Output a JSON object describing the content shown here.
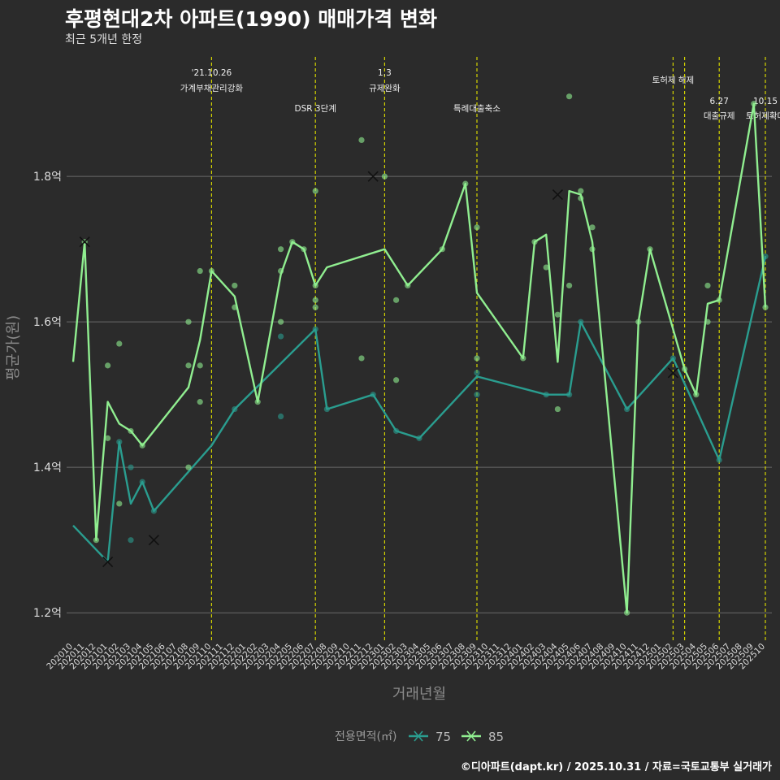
{
  "title": "후평현대2차 아파트(1990) 매매가격 변화",
  "subtitle": "최근 5개년 한정",
  "caption": "©디아파트(dapt.kr) / 2025.10.31 / 자료=국토교통부 실거래가",
  "colors": {
    "background": "#2b2b2b",
    "grid": "#6a6a6a",
    "event": "#d4d400",
    "s75": "#2a9d8f",
    "s85": "#90ee90",
    "text": "#dddddd"
  },
  "chart_data": {
    "type": "line",
    "xlabel": "거래년월",
    "ylabel": "평균가(원)",
    "ylim": [
      1.16,
      1.97
    ],
    "yticks": [
      {
        "v": 1.2,
        "label": "1.2억"
      },
      {
        "v": 1.4,
        "label": "1.4억"
      },
      {
        "v": 1.6,
        "label": "1.6억"
      },
      {
        "v": 1.8,
        "label": "1.8억"
      }
    ],
    "categories": [
      "202010",
      "202011",
      "202012",
      "202101",
      "202102",
      "202103",
      "202104",
      "202105",
      "202106",
      "202107",
      "202108",
      "202109",
      "202110",
      "202111",
      "202112",
      "202201",
      "202202",
      "202203",
      "202204",
      "202205",
      "202206",
      "202207",
      "202208",
      "202209",
      "202210",
      "202211",
      "202212",
      "202301",
      "202302",
      "202303",
      "202304",
      "202305",
      "202306",
      "202307",
      "202308",
      "202309",
      "202310",
      "202311",
      "202312",
      "202401",
      "202402",
      "202403",
      "202404",
      "202405",
      "202406",
      "202407",
      "202408",
      "202409",
      "202410",
      "202411",
      "202412",
      "202501",
      "202502",
      "202503",
      "202504",
      "202505",
      "202506",
      "202507",
      "202508",
      "202509",
      "202510"
    ],
    "legend": {
      "title": "전용면적(㎡)",
      "items": [
        "75",
        "85"
      ]
    },
    "series": [
      {
        "name": "75",
        "color": "#2a9d8f",
        "line": [
          [
            0,
            1.32
          ],
          [
            3,
            1.27
          ],
          [
            4,
            1.435
          ],
          [
            5,
            1.35
          ],
          [
            6,
            1.38
          ],
          [
            7,
            1.34
          ],
          [
            12,
            1.43
          ],
          [
            14,
            1.48
          ],
          [
            21,
            1.59
          ],
          [
            22,
            1.48
          ],
          [
            26,
            1.5
          ],
          [
            28,
            1.45
          ],
          [
            30,
            1.44
          ],
          [
            35,
            1.525
          ],
          [
            41,
            1.5
          ],
          [
            43,
            1.5
          ],
          [
            44,
            1.6
          ],
          [
            48,
            1.48
          ],
          [
            52,
            1.55
          ],
          [
            56,
            1.41
          ],
          [
            60,
            1.69
          ]
        ],
        "points": [
          [
            4,
            1.435
          ],
          [
            5,
            1.4
          ],
          [
            5,
            1.3
          ],
          [
            6,
            1.38
          ],
          [
            7,
            1.34
          ],
          [
            14,
            1.48
          ],
          [
            18,
            1.58
          ],
          [
            18,
            1.47
          ],
          [
            21,
            1.59
          ],
          [
            22,
            1.48
          ],
          [
            26,
            1.5
          ],
          [
            28,
            1.45
          ],
          [
            30,
            1.44
          ],
          [
            35,
            1.5
          ],
          [
            35,
            1.53
          ],
          [
            41,
            1.5
          ],
          [
            43,
            1.5
          ],
          [
            44,
            1.6
          ],
          [
            48,
            1.48
          ],
          [
            52,
            1.55
          ],
          [
            56,
            1.41
          ],
          [
            60,
            1.69
          ]
        ],
        "crosses": [
          [
            3,
            1.27
          ],
          [
            7,
            1.3
          ],
          [
            52,
            1.53
          ]
        ]
      },
      {
        "name": "85",
        "color": "#90ee90",
        "line": [
          [
            0,
            1.545
          ],
          [
            1,
            1.71
          ],
          [
            2,
            1.3
          ],
          [
            3,
            1.49
          ],
          [
            4,
            1.46
          ],
          [
            5,
            1.45
          ],
          [
            6,
            1.43
          ],
          [
            10,
            1.51
          ],
          [
            11,
            1.575
          ],
          [
            12,
            1.67
          ],
          [
            14,
            1.635
          ],
          [
            16,
            1.49
          ],
          [
            18,
            1.665
          ],
          [
            19,
            1.71
          ],
          [
            20,
            1.7
          ],
          [
            21,
            1.65
          ],
          [
            22,
            1.675
          ],
          [
            27,
            1.7
          ],
          [
            29,
            1.65
          ],
          [
            32,
            1.7
          ],
          [
            34,
            1.79
          ],
          [
            35,
            1.64
          ],
          [
            39,
            1.55
          ],
          [
            40,
            1.71
          ],
          [
            41,
            1.72
          ],
          [
            42,
            1.545
          ],
          [
            43,
            1.78
          ],
          [
            44,
            1.775
          ],
          [
            45,
            1.71
          ],
          [
            48,
            1.2
          ],
          [
            49,
            1.6
          ],
          [
            50,
            1.7
          ],
          [
            53,
            1.535
          ],
          [
            54,
            1.5
          ],
          [
            55,
            1.625
          ],
          [
            56,
            1.63
          ],
          [
            59,
            1.9
          ],
          [
            60,
            1.62
          ]
        ],
        "points": [
          [
            1,
            1.71
          ],
          [
            2,
            1.3
          ],
          [
            3,
            1.54
          ],
          [
            3,
            1.44
          ],
          [
            4,
            1.57
          ],
          [
            4,
            1.35
          ],
          [
            5,
            1.45
          ],
          [
            6,
            1.43
          ],
          [
            10,
            1.6
          ],
          [
            10,
            1.54
          ],
          [
            10,
            1.4
          ],
          [
            11,
            1.67
          ],
          [
            11,
            1.54
          ],
          [
            11,
            1.49
          ],
          [
            12,
            1.67
          ],
          [
            14,
            1.65
          ],
          [
            14,
            1.62
          ],
          [
            16,
            1.49
          ],
          [
            18,
            1.7
          ],
          [
            18,
            1.67
          ],
          [
            18,
            1.6
          ],
          [
            19,
            1.71
          ],
          [
            20,
            1.7
          ],
          [
            21,
            1.78
          ],
          [
            21,
            1.65
          ],
          [
            21,
            1.63
          ],
          [
            21,
            1.62
          ],
          [
            25,
            1.85
          ],
          [
            25,
            1.55
          ],
          [
            27,
            1.8
          ],
          [
            28,
            1.63
          ],
          [
            28,
            1.52
          ],
          [
            29,
            1.65
          ],
          [
            32,
            1.7
          ],
          [
            34,
            1.79
          ],
          [
            35,
            1.73
          ],
          [
            35,
            1.55
          ],
          [
            39,
            1.55
          ],
          [
            40,
            1.71
          ],
          [
            41,
            1.675
          ],
          [
            42,
            1.61
          ],
          [
            42,
            1.48
          ],
          [
            43,
            1.91
          ],
          [
            43,
            1.65
          ],
          [
            44,
            1.77
          ],
          [
            44,
            1.78
          ],
          [
            45,
            1.73
          ],
          [
            45,
            1.7
          ],
          [
            48,
            1.2
          ],
          [
            49,
            1.6
          ],
          [
            50,
            1.7
          ],
          [
            53,
            1.535
          ],
          [
            54,
            1.5
          ],
          [
            55,
            1.65
          ],
          [
            55,
            1.6
          ],
          [
            56,
            1.63
          ],
          [
            59,
            1.9
          ],
          [
            60,
            1.62
          ]
        ],
        "crosses": [
          [
            1,
            1.71
          ],
          [
            26,
            1.8
          ],
          [
            42,
            1.775
          ]
        ]
      }
    ],
    "events": [
      {
        "x": 12,
        "label1": "'21.10.26",
        "label2": "가계부채관리강화",
        "row": 0
      },
      {
        "x": 21,
        "label1": "",
        "label2": "DSR 3단계",
        "row": 1
      },
      {
        "x": 27,
        "label1": "1.3",
        "label2": "규제완화",
        "row": 0
      },
      {
        "x": 35,
        "label1": "",
        "label2": "특례대출축소",
        "row": 1
      },
      {
        "x": 52,
        "label1": "",
        "label2": "토허제 해제",
        "row": 0
      },
      {
        "x": 53,
        "label1": "",
        "label2": "",
        "row": 0
      },
      {
        "x": 56,
        "label1": "6.27",
        "label2": "대출규제",
        "row": 2
      },
      {
        "x": 60,
        "label1": "10.15",
        "label2": "토허제확대",
        "row": 2
      }
    ]
  }
}
